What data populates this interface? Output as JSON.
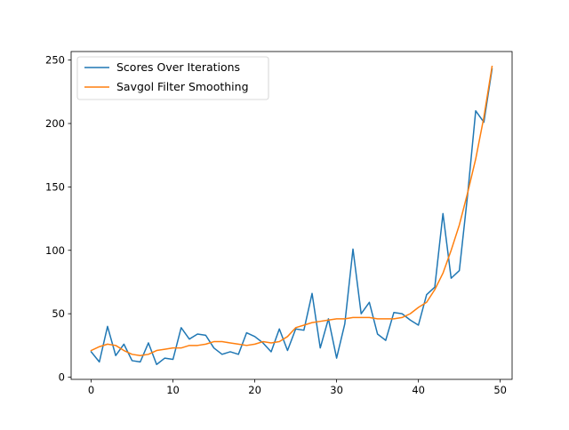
{
  "chart_data": {
    "type": "line",
    "title": "",
    "xlabel": "",
    "ylabel": "",
    "xlim": [
      -2.45,
      51.45
    ],
    "ylim": [
      -1.75,
      256.75
    ],
    "x_ticks": [
      0,
      10,
      20,
      30,
      40,
      50
    ],
    "y_ticks": [
      0,
      50,
      100,
      150,
      200,
      250
    ],
    "legend_position": "top-left",
    "grid": false,
    "series": [
      {
        "name": "Scores Over Iterations",
        "color": "#1f77b4",
        "x": [
          0,
          1,
          2,
          3,
          4,
          5,
          6,
          7,
          8,
          9,
          10,
          11,
          12,
          13,
          14,
          15,
          16,
          17,
          18,
          19,
          20,
          21,
          22,
          23,
          24,
          25,
          26,
          27,
          28,
          29,
          30,
          31,
          32,
          33,
          34,
          35,
          36,
          37,
          38,
          39,
          40,
          41,
          42,
          43,
          44,
          45,
          46,
          47,
          48,
          49
        ],
        "values": [
          20,
          12,
          40,
          17,
          26,
          13,
          12,
          27,
          10,
          15,
          14,
          39,
          30,
          34,
          33,
          23,
          18,
          20,
          18,
          35,
          32,
          27,
          20,
          38,
          21,
          38,
          37,
          66,
          23,
          46,
          15,
          42,
          101,
          50,
          59,
          34,
          29,
          51,
          50,
          45,
          41,
          65,
          71,
          129,
          78,
          84,
          143,
          210,
          201,
          243
        ]
      },
      {
        "name": "Savgol Filter Smoothing",
        "color": "#ff7f0e",
        "x": [
          0,
          1,
          2,
          3,
          4,
          5,
          6,
          7,
          8,
          9,
          10,
          11,
          12,
          13,
          14,
          15,
          16,
          17,
          18,
          19,
          20,
          21,
          22,
          23,
          24,
          25,
          26,
          27,
          28,
          29,
          30,
          31,
          32,
          33,
          34,
          35,
          36,
          37,
          38,
          39,
          40,
          41,
          42,
          43,
          44,
          45,
          46,
          47,
          48,
          49
        ],
        "values": [
          21,
          24,
          26,
          25,
          21,
          18,
          17,
          18,
          21,
          22,
          23,
          23,
          25,
          25,
          26,
          28,
          28,
          27,
          26,
          25,
          26,
          28,
          27,
          28,
          32,
          39,
          41,
          43,
          44,
          45,
          46,
          46,
          47,
          47,
          47,
          46,
          46,
          46,
          47,
          50,
          55,
          59,
          69,
          82,
          100,
          120,
          145,
          172,
          205,
          245
        ]
      }
    ]
  }
}
